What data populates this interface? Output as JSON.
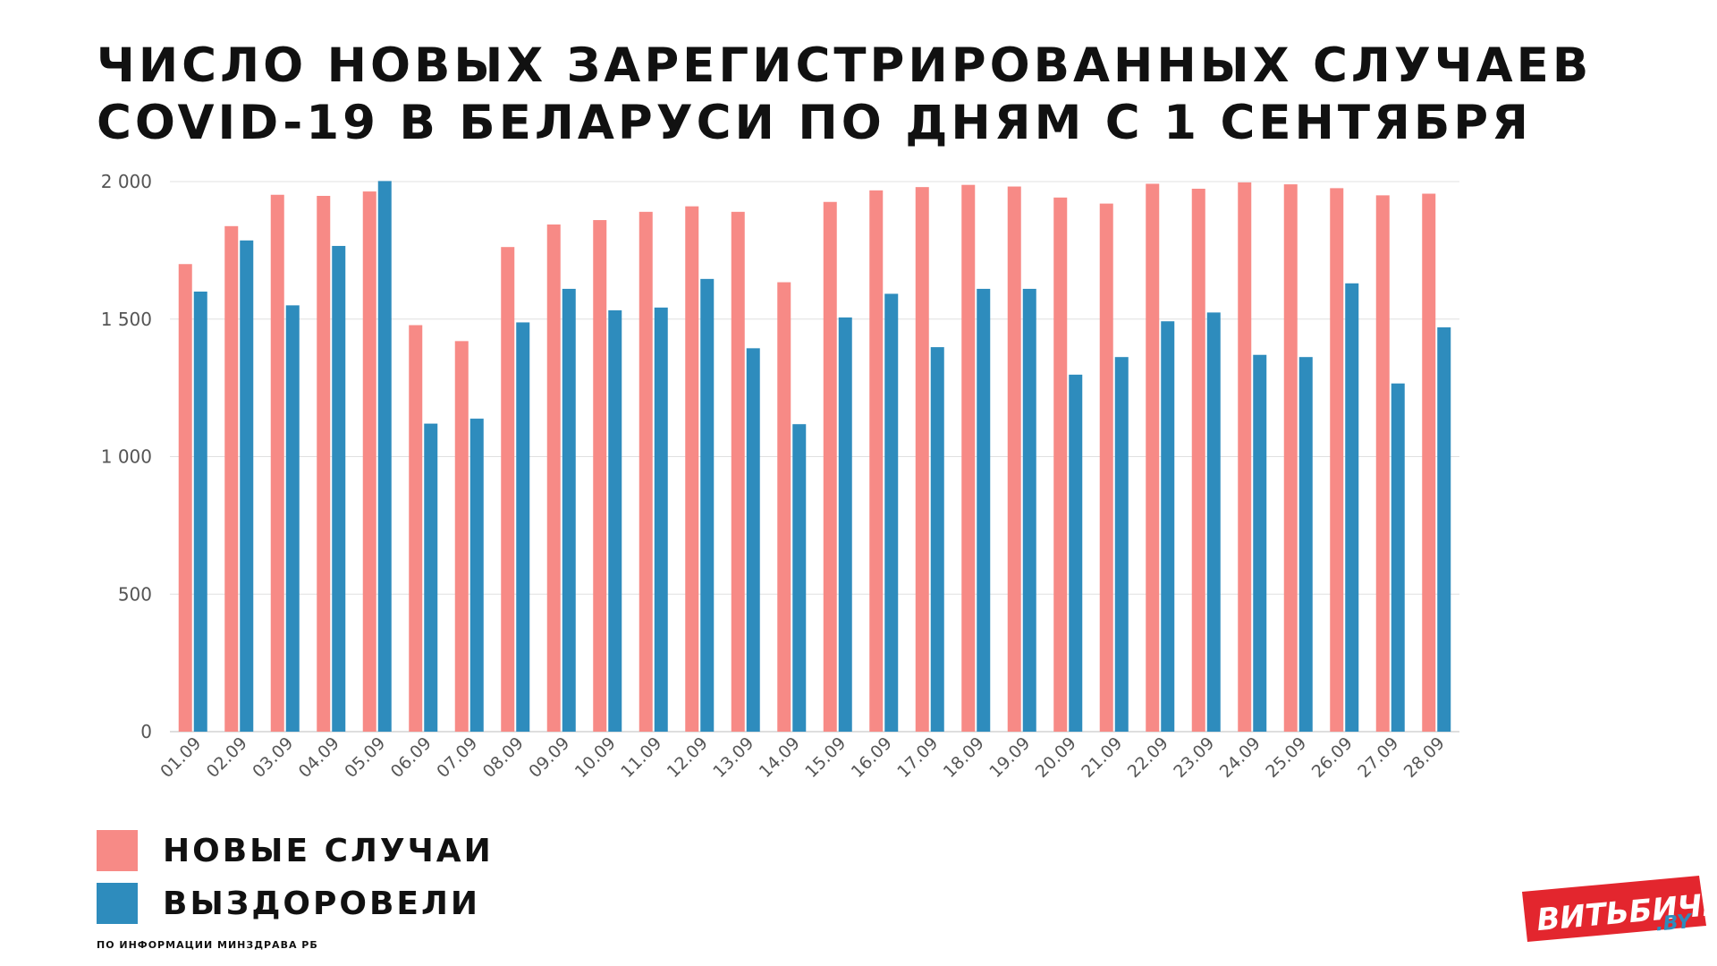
{
  "title": {
    "line1": "ЧИСЛО НОВЫХ ЗАРЕГИСТРИРОВАННЫХ СЛУЧАЕВ",
    "line2": "COVID-19 В БЕЛАРУСИ ПО ДНЯМ С 1 СЕНТЯБРЯ"
  },
  "colors": {
    "new_cases": "#f78a86",
    "recovered": "#2e8cbd",
    "grid": "#e0e0e0",
    "logo_red": "#e3262e"
  },
  "chart_data": {
    "type": "bar",
    "categories": [
      "01.09",
      "02.09",
      "03.09",
      "04.09",
      "05.09",
      "06.09",
      "07.09",
      "08.09",
      "09.09",
      "10.09",
      "11.09",
      "12.09",
      "13.09",
      "14.09",
      "15.09",
      "16.09",
      "17.09",
      "18.09",
      "19.09",
      "20.09",
      "21.09",
      "22.09",
      "23.09",
      "24.09",
      "25.09",
      "26.09",
      "27.09",
      "28.09"
    ],
    "series": [
      {
        "name": "НОВЫЕ СЛУЧАИ",
        "color": "#f78a86",
        "values": [
          1700,
          1838,
          1952,
          1948,
          1964,
          1478,
          1420,
          1762,
          1844,
          1860,
          1890,
          1910,
          1890,
          1634,
          1926,
          1968,
          1980,
          1988,
          1982,
          1942,
          1920,
          1992,
          1974,
          1997,
          1990,
          1976,
          1950,
          1956
        ]
      },
      {
        "name": "ВЫЗДОРОВЕЛИ",
        "color": "#2e8cbd",
        "values": [
          1600,
          1786,
          1550,
          1766,
          2002,
          1120,
          1138,
          1488,
          1610,
          1532,
          1542,
          1646,
          1394,
          1118,
          1506,
          1592,
          1398,
          1610,
          1610,
          1298,
          1362,
          1492,
          1524,
          1370,
          1362,
          1630,
          1266,
          1470
        ]
      }
    ],
    "ylim": [
      0,
      2000
    ],
    "yticks": [
      0,
      500,
      1000,
      1500,
      2000
    ],
    "ytick_labels": [
      "0",
      "500",
      "1 000",
      "1 500",
      "2 000"
    ],
    "xlabel": "",
    "ylabel": "",
    "grid": true,
    "legend_position": "bottom-left"
  },
  "legend": {
    "new_cases_label": "НОВЫЕ СЛУЧАИ",
    "recovered_label": "ВЫЗДОРОВЕЛИ"
  },
  "source_note": "ПО ИНФОРМАЦИИ МИНЗДРАВА РБ",
  "logo": {
    "text": "ВИТЬБИЧИ",
    "suffix": ".BY"
  }
}
